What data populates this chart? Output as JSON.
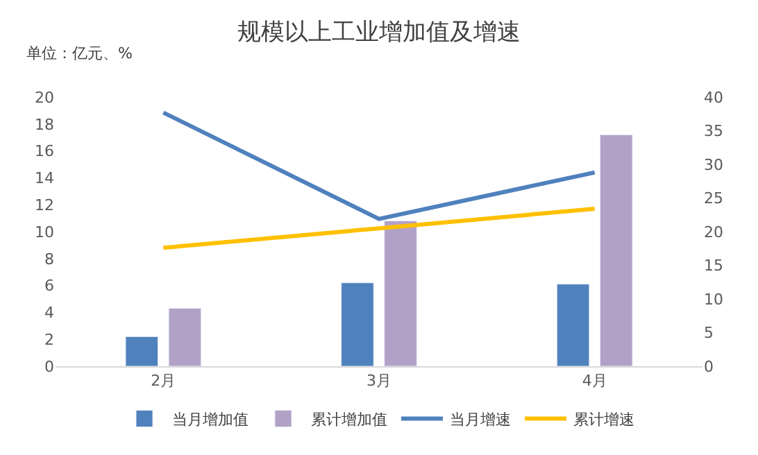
{
  "chart_data": {
    "type": "bar",
    "title": "规模以上工业增加值及增速",
    "annotations": [
      "单位：亿元、%"
    ],
    "categories": [
      "2月",
      "3月",
      "4月"
    ],
    "series": [
      {
        "name": "当月增加值",
        "color": "#4f81bd",
        "values": [
          2.2,
          6.2,
          6.1
        ]
      },
      {
        "name": "累计增加值",
        "color": "#b2a1c7",
        "values": [
          4.3,
          10.8,
          17.2
        ]
      },
      {
        "name": "当月增速",
        "type": "line",
        "axis": "y2",
        "color": "#4f81bd",
        "values": [
          37.7,
          21.9,
          28.8
        ]
      },
      {
        "name": "累计增速",
        "type": "line",
        "axis": "y2",
        "color": "#ffc000",
        "values": [
          17.6,
          20.5,
          23.4
        ]
      }
    ],
    "ylim": [
      0,
      20
    ],
    "yticks": [
      0,
      2,
      4,
      6,
      8,
      10,
      12,
      14,
      16,
      18,
      20
    ],
    "y2lim": [
      0,
      40
    ],
    "y2ticks": [
      0,
      5,
      10,
      15,
      20,
      25,
      30,
      35,
      40
    ],
    "legend": "bottom",
    "marker": "none"
  }
}
